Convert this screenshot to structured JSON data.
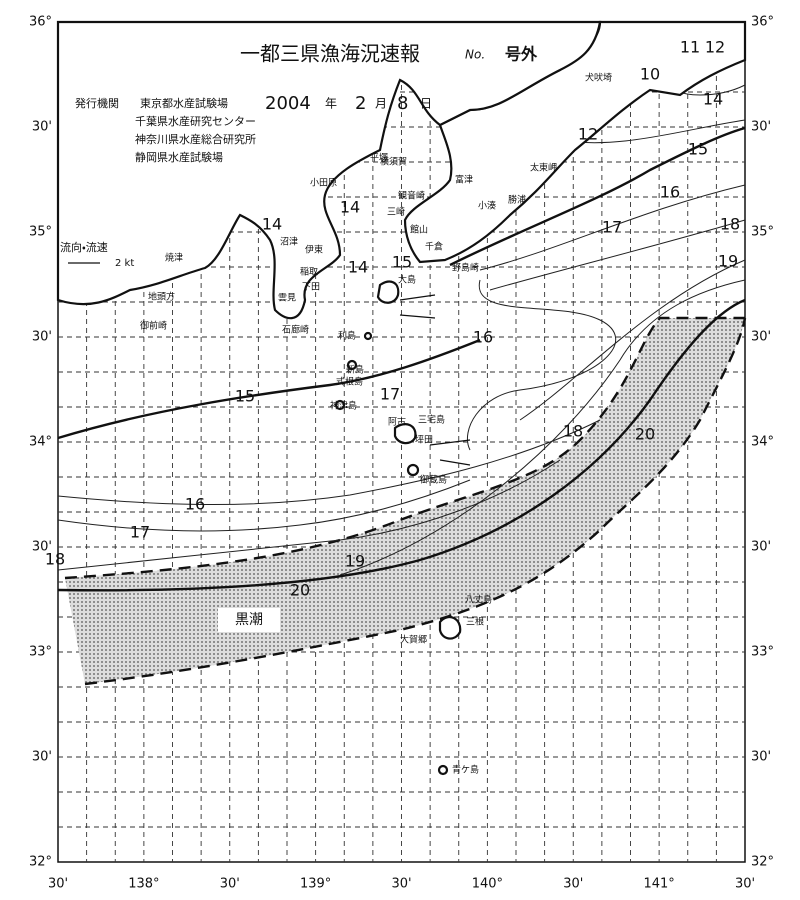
{
  "header": {
    "title": "一都三県漁海況速報",
    "number_label": "No.",
    "issue_label": "号外",
    "issuer_label": "発行機関",
    "issuers": [
      "東京都水産試験場",
      "千葉県水産研究センター",
      "神奈川県水産総合研究所",
      "静岡県水産試験場"
    ],
    "date": {
      "year": "2004",
      "year_unit": "年",
      "month": "2",
      "month_unit": "月",
      "day": "8",
      "day_unit": "日"
    }
  },
  "legend": {
    "current": "流向・流速",
    "scale": "2 kt"
  },
  "lat_labels": [
    "36°",
    "30'",
    "35°",
    "30'",
    "34°",
    "30'",
    "33°",
    "30'",
    "32°"
  ],
  "lon_labels": [
    "30'",
    "138°",
    "30'",
    "139°",
    "30'",
    "140°",
    "30'",
    "141°",
    "30'"
  ],
  "places": [
    "犬吠埼",
    "太東岬",
    "勝浦",
    "小湊",
    "富津",
    "館山",
    "千倉",
    "野島崎",
    "平塚",
    "横須賀",
    "観音崎",
    "三崎",
    "小田原",
    "沼津",
    "伊東",
    "稲取",
    "下田",
    "雲見",
    "石廊崎",
    "焼津",
    "地頭方",
    "御前崎",
    "大島",
    "利島",
    "新島",
    "式根島",
    "神津島",
    "三宅島",
    "阿古",
    "坪田",
    "御蔵島",
    "八丈島",
    "三根",
    "大賀郷",
    "青ケ島"
  ],
  "isotherm_labels": [
    10,
    11,
    12,
    14,
    12,
    15,
    16,
    17,
    18,
    19,
    14,
    14,
    14,
    15,
    16,
    15,
    17,
    18,
    20,
    16,
    17,
    18,
    19,
    20
  ],
  "kuroshio": "黒潮"
}
